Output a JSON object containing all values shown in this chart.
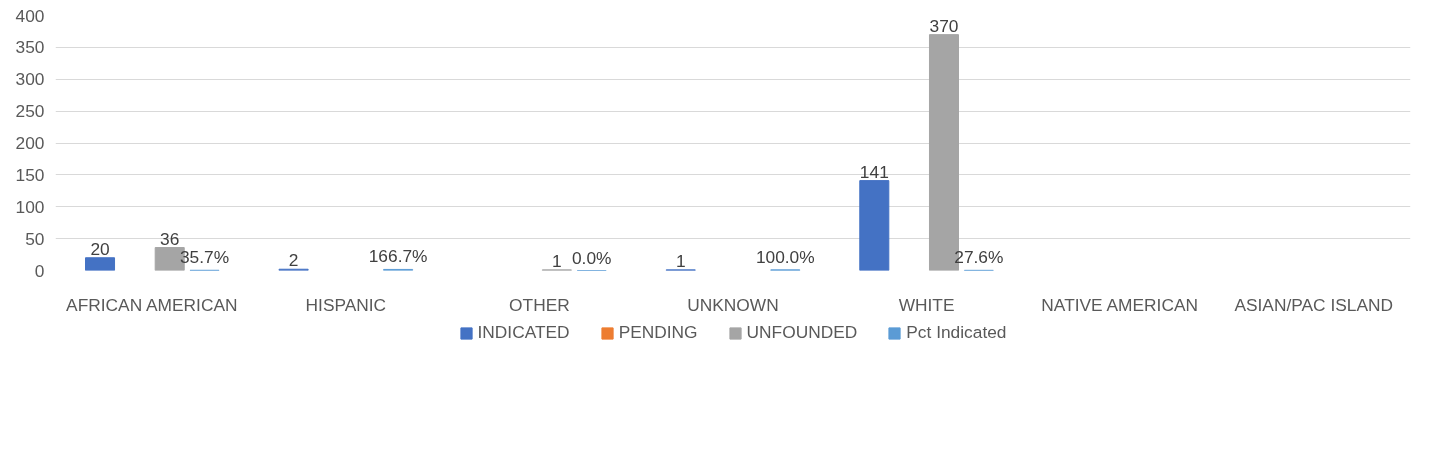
{
  "chart_data": {
    "type": "bar",
    "categories": [
      "AFRICAN AMERICAN",
      "HISPANIC",
      "OTHER",
      "UNKNOWN",
      "WHITE",
      "NATIVE AMERICAN",
      "ASIAN/PAC ISLAND"
    ],
    "series": [
      {
        "name": "INDICATED",
        "color": "#4472c4",
        "values": [
          20,
          2,
          null,
          1,
          141,
          null,
          null
        ],
        "value_labels": [
          "20",
          "2",
          null,
          "1",
          "141",
          null,
          null
        ]
      },
      {
        "name": "PENDING",
        "color": "#ed7d31",
        "values": [
          null,
          null,
          null,
          null,
          null,
          null,
          null
        ]
      },
      {
        "name": "UNFOUNDED",
        "color": "#a5a5a5",
        "values": [
          36,
          null,
          1,
          null,
          370,
          null,
          null
        ],
        "value_labels": [
          "36",
          null,
          "1",
          null,
          "370",
          null,
          null
        ]
      },
      {
        "name": "Pct Indicated",
        "color": "#5b9bd5",
        "values": [
          0.357,
          1.667,
          0.0,
          1.0,
          0.276,
          null,
          null
        ],
        "value_labels": [
          "35.7%",
          "166.7%",
          "0.0%",
          "100.0%",
          "27.6%",
          null,
          null
        ]
      }
    ],
    "ylim": [
      0,
      400
    ],
    "yticks": [
      0,
      50,
      100,
      150,
      200,
      250,
      300,
      350,
      400
    ],
    "grid": "y",
    "legend": "bottom"
  }
}
